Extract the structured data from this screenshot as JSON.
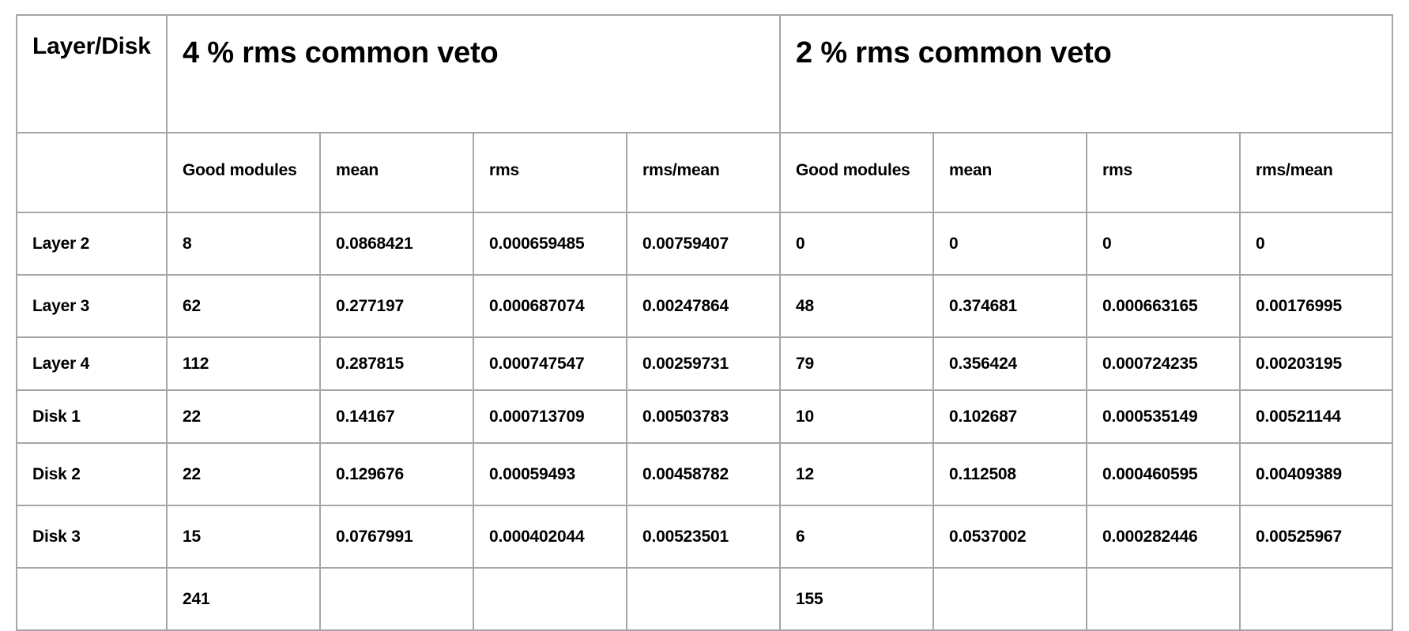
{
  "table": {
    "corner_header": "Layer/Disk",
    "groups": [
      {
        "title": "4 % rms common veto"
      },
      {
        "title": "2 % rms common veto"
      }
    ],
    "subheaders": [
      "Good modules",
      "mean",
      "rms",
      "rms/mean",
      "Good modules",
      "mean",
      "rms",
      "rms/mean"
    ],
    "rows": [
      {
        "label": "Layer 2",
        "cells": [
          "8",
          "0.0868421",
          "0.000659485",
          "0.00759407",
          "0",
          "0",
          "0",
          "0"
        ]
      },
      {
        "label": "Layer 3",
        "cells": [
          "62",
          "0.277197",
          "0.000687074",
          "0.00247864",
          "48",
          "0.374681",
          "0.000663165",
          "0.00176995"
        ]
      },
      {
        "label": "Layer 4",
        "cells": [
          "112",
          "0.287815",
          "0.000747547",
          "0.00259731",
          "79",
          "0.356424",
          "0.000724235",
          "0.00203195"
        ]
      },
      {
        "label": "Disk 1",
        "cells": [
          "22",
          "0.14167",
          "0.000713709",
          "0.00503783",
          "10",
          "0.102687",
          "0.000535149",
          "0.00521144"
        ]
      },
      {
        "label": "Disk 2",
        "cells": [
          "22",
          "0.129676",
          "0.00059493",
          "0.00458782",
          "12",
          "0.112508",
          "0.000460595",
          "0.00409389"
        ]
      },
      {
        "label": "Disk 3",
        "cells": [
          "15",
          "0.0767991",
          "0.000402044",
          "0.00523501",
          "6",
          "0.0537002",
          "0.000282446",
          "0.00525967"
        ]
      }
    ],
    "totals": {
      "label": "",
      "cells": [
        "241",
        "",
        "",
        "",
        "155",
        "",
        "",
        ""
      ]
    }
  }
}
